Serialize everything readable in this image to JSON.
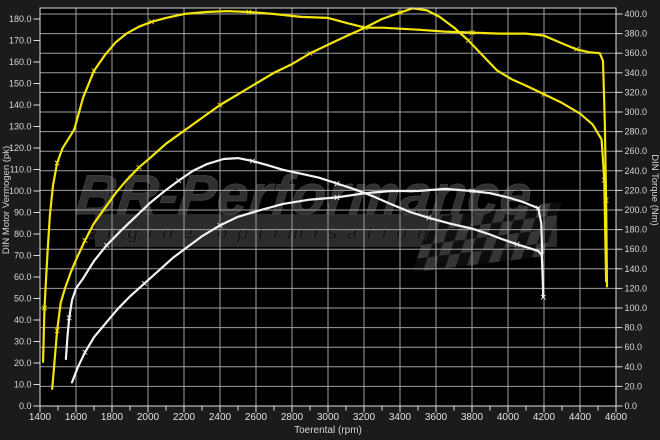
{
  "chart_data": {
    "type": "line",
    "title": "",
    "xlabel": "Toerental (rpm)",
    "ylabel_left": "DIN Motor Vermogen (pk)",
    "ylabel_right": "DIN Torque (Nm)",
    "x_range": [
      1400,
      4600
    ],
    "x_major_step": 200,
    "x_minor_step": 100,
    "y_left_range": [
      0,
      180
    ],
    "y_right_range": [
      0,
      400
    ],
    "x_tick_labels": [
      "1400",
      "1600",
      "1800",
      "2000",
      "2200",
      "2400",
      "2600",
      "2800",
      "3000",
      "3200",
      "3400",
      "3600",
      "3800",
      "4000",
      "4200",
      "4400",
      "4600"
    ],
    "y_left_tick_labels": [
      "0.0",
      "10.0",
      "20.0",
      "30.0",
      "40.0",
      "50.0",
      "60.0",
      "70.0",
      "80.0",
      "90.0",
      "100.0",
      "110.0",
      "120.0",
      "130.0",
      "140.0",
      "150.0",
      "160.0",
      "170.0",
      "180.0"
    ],
    "y_right_tick_labels": [
      "0.0",
      "20.0",
      "40.0",
      "60.0",
      "80.0",
      "100.0",
      "120.0",
      "140.0",
      "160.0",
      "180.0",
      "200.0",
      "220.0",
      "240.0",
      "260.0",
      "280.0",
      "300.0",
      "320.0",
      "340.0",
      "360.0",
      "380.0",
      "400.0"
    ],
    "grid": "on",
    "legend": "none",
    "colors": {
      "tuned": "#f3e50a",
      "stock": "#f2f2f2",
      "grid": "#9f9f9f",
      "frame": "#dcdcdc",
      "tick_text": "#d6d6d6",
      "plot_bg": "#000000",
      "outer_bg": "#1b1b1b",
      "watermark_text": "#353535",
      "watermark_band": "#2b2b2b",
      "watermark_sub_text": "#141414",
      "checker_dark": "#0e0e0e",
      "checker_light": "#383838"
    },
    "series": [
      {
        "name": "torque-tuned",
        "run": "tuned",
        "axis": "right",
        "unit": "Nm",
        "points": [
          [
            1417,
            45
          ],
          [
            1421,
            75
          ],
          [
            1425,
            100
          ],
          [
            1432,
            125
          ],
          [
            1442,
            158
          ],
          [
            1455,
            195
          ],
          [
            1472,
            225
          ],
          [
            1495,
            248
          ],
          [
            1525,
            263
          ],
          [
            1556,
            272
          ],
          [
            1590,
            282
          ],
          [
            1640,
            315
          ],
          [
            1700,
            342
          ],
          [
            1760,
            358
          ],
          [
            1820,
            371
          ],
          [
            1880,
            380
          ],
          [
            1950,
            387
          ],
          [
            2020,
            392
          ],
          [
            2100,
            396
          ],
          [
            2200,
            400
          ],
          [
            2320,
            402
          ],
          [
            2440,
            403
          ],
          [
            2560,
            402
          ],
          [
            2700,
            400
          ],
          [
            2850,
            397
          ],
          [
            3000,
            396
          ],
          [
            3100,
            391
          ],
          [
            3206,
            386
          ],
          [
            3300,
            386
          ],
          [
            3400,
            385
          ],
          [
            3500,
            384
          ],
          [
            3650,
            382
          ],
          [
            3800,
            381
          ],
          [
            3950,
            380
          ],
          [
            4100,
            380
          ],
          [
            4200,
            378
          ],
          [
            4300,
            370
          ],
          [
            4380,
            364
          ],
          [
            4450,
            361
          ],
          [
            4510,
            360
          ],
          [
            4528,
            352
          ],
          [
            4538,
            290
          ],
          [
            4545,
            210
          ],
          [
            4550,
            122
          ]
        ]
      },
      {
        "name": "power-tuned",
        "run": "tuned",
        "axis": "left",
        "unit": "pk",
        "points": [
          [
            1468,
            8
          ],
          [
            1480,
            20
          ],
          [
            1495,
            35
          ],
          [
            1515,
            48
          ],
          [
            1540,
            55
          ],
          [
            1570,
            62
          ],
          [
            1600,
            68
          ],
          [
            1650,
            77
          ],
          [
            1700,
            85
          ],
          [
            1760,
            92
          ],
          [
            1820,
            99
          ],
          [
            1880,
            105
          ],
          [
            1950,
            111
          ],
          [
            2020,
            116
          ],
          [
            2100,
            122
          ],
          [
            2200,
            128
          ],
          [
            2300,
            134
          ],
          [
            2400,
            140
          ],
          [
            2500,
            145
          ],
          [
            2600,
            150
          ],
          [
            2700,
            155
          ],
          [
            2800,
            159
          ],
          [
            2900,
            164
          ],
          [
            3000,
            168
          ],
          [
            3100,
            172
          ],
          [
            3206,
            176
          ],
          [
            3300,
            180
          ],
          [
            3400,
            183
          ],
          [
            3470,
            185
          ],
          [
            3550,
            184
          ],
          [
            3620,
            181
          ],
          [
            3700,
            176
          ],
          [
            3780,
            170
          ],
          [
            3860,
            163
          ],
          [
            3940,
            156
          ],
          [
            4020,
            152
          ],
          [
            4100,
            149
          ],
          [
            4200,
            145
          ],
          [
            4300,
            141
          ],
          [
            4400,
            136
          ],
          [
            4470,
            131
          ],
          [
            4520,
            124
          ],
          [
            4535,
            105
          ],
          [
            4545,
            58
          ]
        ]
      },
      {
        "name": "torque-stock",
        "run": "stock",
        "axis": "right",
        "unit": "Nm",
        "points": [
          [
            1544,
            48
          ],
          [
            1552,
            70
          ],
          [
            1562,
            90
          ],
          [
            1578,
            108
          ],
          [
            1600,
            120
          ],
          [
            1639,
            130
          ],
          [
            1700,
            148
          ],
          [
            1770,
            164
          ],
          [
            1850,
            179
          ],
          [
            1930,
            193
          ],
          [
            2010,
            207
          ],
          [
            2090,
            219
          ],
          [
            2170,
            230
          ],
          [
            2250,
            240
          ],
          [
            2330,
            247
          ],
          [
            2420,
            252
          ],
          [
            2500,
            253
          ],
          [
            2580,
            250
          ],
          [
            2660,
            246
          ],
          [
            2750,
            241
          ],
          [
            2850,
            237
          ],
          [
            2950,
            233
          ],
          [
            3050,
            227
          ],
          [
            3150,
            221
          ],
          [
            3250,
            214
          ],
          [
            3350,
            206
          ],
          [
            3456,
            198
          ],
          [
            3560,
            192
          ],
          [
            3680,
            186
          ],
          [
            3800,
            181
          ],
          [
            3900,
            175
          ],
          [
            3956,
            171
          ],
          [
            4050,
            165
          ],
          [
            4120,
            161
          ],
          [
            4170,
            158
          ],
          [
            4188,
            154
          ],
          [
            4193,
            130
          ],
          [
            4196,
            111
          ]
        ]
      },
      {
        "name": "power-stock",
        "run": "stock",
        "axis": "left",
        "unit": "pk",
        "points": [
          [
            1578,
            11
          ],
          [
            1610,
            18
          ],
          [
            1650,
            25
          ],
          [
            1700,
            32
          ],
          [
            1760,
            38
          ],
          [
            1830,
            45
          ],
          [
            1900,
            51
          ],
          [
            1980,
            57
          ],
          [
            2060,
            63
          ],
          [
            2140,
            69
          ],
          [
            2220,
            74
          ],
          [
            2300,
            79
          ],
          [
            2400,
            84
          ],
          [
            2500,
            88
          ],
          [
            2620,
            91
          ],
          [
            2750,
            94
          ],
          [
            2900,
            96
          ],
          [
            3050,
            97
          ],
          [
            3206,
            99
          ],
          [
            3350,
            100
          ],
          [
            3500,
            100
          ],
          [
            3650,
            101
          ],
          [
            3800,
            100
          ],
          [
            3900,
            99
          ],
          [
            4000,
            97
          ],
          [
            4080,
            95
          ],
          [
            4140,
            93
          ],
          [
            4168,
            92
          ],
          [
            4185,
            85
          ],
          [
            4190,
            71
          ]
        ]
      }
    ],
    "watermark": {
      "line1": "BR-Performance",
      "line2": "engine optimisation"
    }
  }
}
